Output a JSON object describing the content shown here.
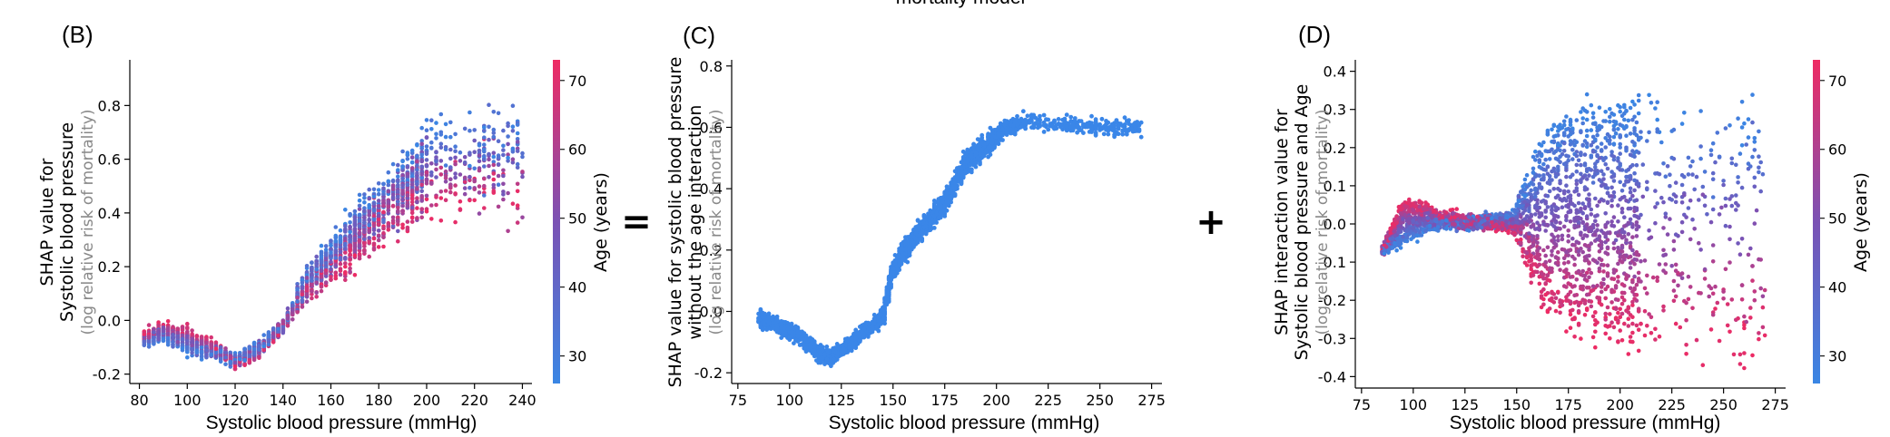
{
  "figure": {
    "title_fragment": "mortality model",
    "equals_symbol": "=",
    "plus_symbol": "+"
  },
  "colors": {
    "low_age": "#3a86e4",
    "high_age": "#ee2b63",
    "mid_age": "#7b52b4",
    "panel_c_points": "#3a86e8"
  },
  "chart_data": [
    {
      "panel": "(B)",
      "type": "scatter",
      "xlabel": "Systolic blood pressure (mmHg)",
      "ylabel_line1": "SHAP value for",
      "ylabel_line2": "Systolic blood pressure",
      "ylabel_sub": "(log relative risk of mortality)",
      "xlim": [
        76,
        244
      ],
      "ylim": [
        -0.235,
        0.97
      ],
      "xticks": [
        80,
        100,
        120,
        140,
        160,
        180,
        200,
        220,
        240
      ],
      "yticks": [
        -0.2,
        0.0,
        0.2,
        0.4,
        0.6,
        0.8
      ],
      "colorbar": {
        "label": "Age (years)",
        "range": [
          26,
          73
        ],
        "ticks": [
          30,
          40,
          50,
          60,
          70
        ]
      },
      "color_by": "Age (years)",
      "trend_young": [
        [
          80,
          -0.08
        ],
        [
          90,
          -0.07
        ],
        [
          100,
          -0.11
        ],
        [
          110,
          -0.13
        ],
        [
          120,
          -0.14
        ],
        [
          130,
          -0.1
        ],
        [
          140,
          -0.02
        ],
        [
          150,
          0.17
        ],
        [
          160,
          0.27
        ],
        [
          170,
          0.38
        ],
        [
          180,
          0.46
        ],
        [
          190,
          0.56
        ],
        [
          200,
          0.65
        ],
        [
          210,
          0.7
        ],
        [
          220,
          0.68
        ],
        [
          240,
          0.72
        ]
      ],
      "trend_old": [
        [
          80,
          -0.06
        ],
        [
          90,
          -0.02
        ],
        [
          100,
          -0.04
        ],
        [
          110,
          -0.09
        ],
        [
          120,
          -0.16
        ],
        [
          130,
          -0.12
        ],
        [
          140,
          -0.02
        ],
        [
          150,
          0.1
        ],
        [
          160,
          0.17
        ],
        [
          170,
          0.24
        ],
        [
          180,
          0.33
        ],
        [
          190,
          0.41
        ],
        [
          200,
          0.44
        ],
        [
          210,
          0.46
        ],
        [
          220,
          0.46
        ],
        [
          240,
          0.45
        ]
      ]
    },
    {
      "panel": "(C)",
      "type": "scatter",
      "xlabel": "Systolic blood pressure (mmHg)",
      "ylabel_line1": "SHAP value for systolic blood pressure",
      "ylabel_line2": "without the age interaction",
      "ylabel_sub": "(log relative risk of mortality)",
      "xlim": [
        72,
        280
      ],
      "ylim": [
        -0.235,
        0.82
      ],
      "xticks": [
        75,
        100,
        125,
        150,
        175,
        200,
        225,
        250,
        275
      ],
      "yticks": [
        -0.2,
        0.0,
        0.2,
        0.4,
        0.6,
        0.8
      ],
      "trend": [
        [
          85,
          -0.02
        ],
        [
          95,
          -0.05
        ],
        [
          105,
          -0.08
        ],
        [
          115,
          -0.14
        ],
        [
          120,
          -0.15
        ],
        [
          125,
          -0.13
        ],
        [
          135,
          -0.07
        ],
        [
          145,
          -0.02
        ],
        [
          150,
          0.14
        ],
        [
          155,
          0.19
        ],
        [
          165,
          0.28
        ],
        [
          175,
          0.35
        ],
        [
          180,
          0.42
        ],
        [
          185,
          0.48
        ],
        [
          195,
          0.54
        ],
        [
          205,
          0.6
        ],
        [
          215,
          0.62
        ],
        [
          230,
          0.61
        ],
        [
          250,
          0.6
        ],
        [
          270,
          0.6
        ]
      ]
    },
    {
      "panel": "(D)",
      "type": "scatter",
      "xlabel": "Systolic blood pressure (mmHg)",
      "ylabel_line1": "SHAP interaction value for",
      "ylabel_line2": "Systolic blood pressure and Age",
      "ylabel_sub": "(log relative risk of mortality)",
      "xlim": [
        72,
        280
      ],
      "ylim": [
        -0.43,
        0.43
      ],
      "xticks": [
        75,
        100,
        125,
        150,
        175,
        200,
        225,
        250,
        275
      ],
      "yticks": [
        -0.4,
        -0.3,
        -0.2,
        -0.1,
        0.0,
        0.1,
        0.2,
        0.3,
        0.4
      ],
      "colorbar": {
        "label": "Age (years)",
        "range": [
          26,
          73
        ],
        "ticks": [
          30,
          40,
          50,
          60,
          70
        ]
      },
      "color_by": "Age (years)",
      "trend_young": [
        [
          85,
          -0.07
        ],
        [
          95,
          -0.05
        ],
        [
          105,
          -0.02
        ],
        [
          115,
          0.0
        ],
        [
          125,
          0.0
        ],
        [
          135,
          0.01
        ],
        [
          148,
          0.02
        ],
        [
          155,
          0.12
        ],
        [
          162,
          0.22
        ],
        [
          170,
          0.27
        ],
        [
          180,
          0.29
        ],
        [
          195,
          0.29
        ],
        [
          210,
          0.3
        ],
        [
          230,
          0.28
        ],
        [
          245,
          0.28
        ]
      ],
      "trend_old": [
        [
          85,
          -0.07
        ],
        [
          95,
          0.06
        ],
        [
          105,
          0.05
        ],
        [
          115,
          0.02
        ],
        [
          125,
          0.01
        ],
        [
          135,
          0.0
        ],
        [
          148,
          -0.01
        ],
        [
          155,
          -0.1
        ],
        [
          162,
          -0.2
        ],
        [
          170,
          -0.25
        ],
        [
          180,
          -0.28
        ],
        [
          195,
          -0.28
        ],
        [
          210,
          -0.3
        ],
        [
          230,
          -0.32
        ],
        [
          260,
          -0.3
        ],
        [
          270,
          -0.3
        ]
      ]
    }
  ]
}
